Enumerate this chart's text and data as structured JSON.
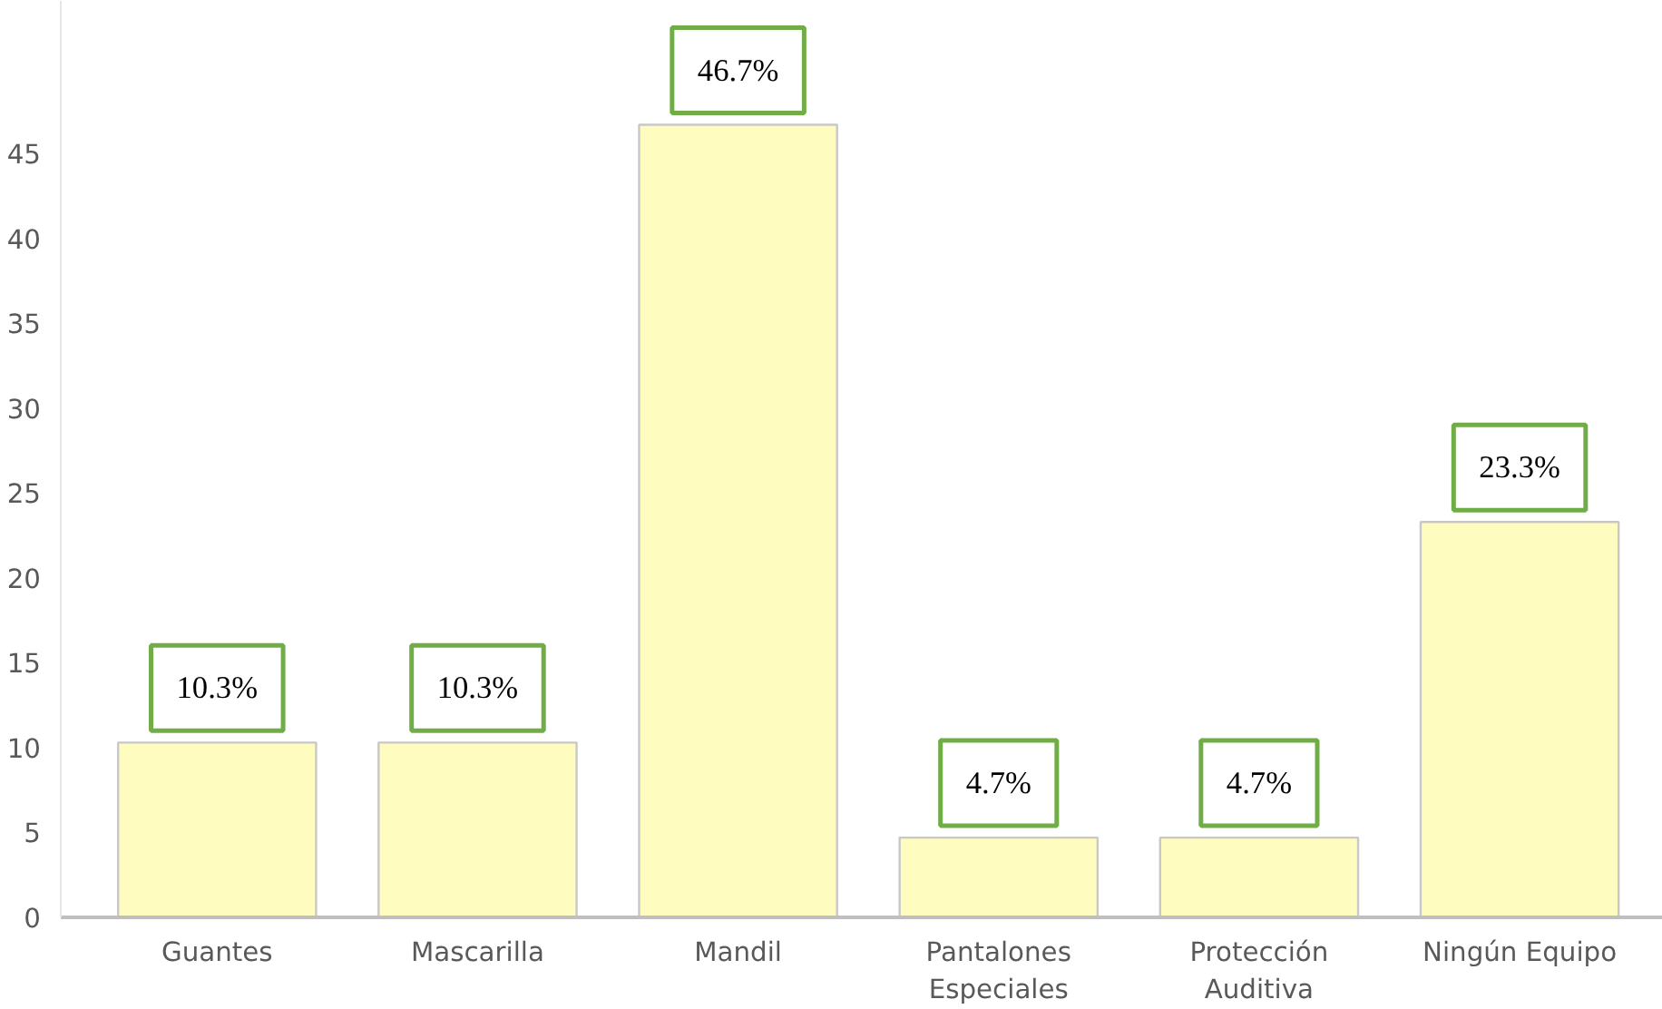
{
  "chart_data": {
    "type": "bar",
    "categories": [
      "Guantes",
      "Mascarilla",
      "Mandil",
      "Pantalones Especiales",
      "Protección Auditiva",
      "Ningún Equipo"
    ],
    "values": [
      10.3,
      10.3,
      46.7,
      4.7,
      4.7,
      23.3
    ],
    "value_labels": [
      "10.3%",
      "10.3%",
      "46.7%",
      "4.7%",
      "4.7%",
      "23.3%"
    ],
    "color": "#fffcc0",
    "ylim": [
      0,
      54
    ],
    "yticks": [
      0,
      5,
      10,
      15,
      20,
      25,
      30,
      35,
      40,
      45
    ],
    "grid": false
  }
}
